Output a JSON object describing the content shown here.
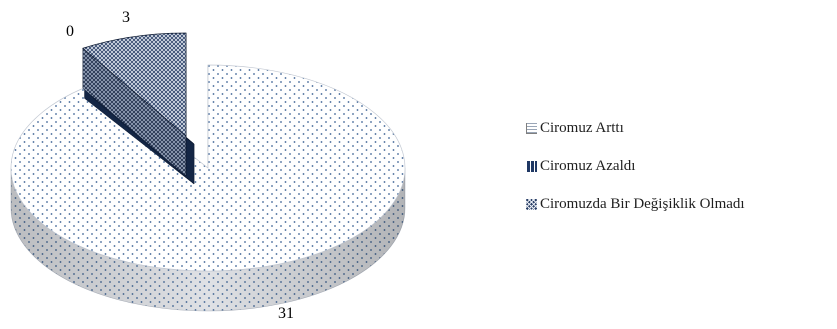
{
  "chart_data": {
    "type": "pie",
    "title": "",
    "categories": [
      "Ciromuz Arttı",
      "Ciromuz Azaldı",
      "Ciromuzda Bir Değişiklik Olmadı"
    ],
    "values": [
      31,
      0,
      3
    ],
    "data_labels": [
      "31",
      "0",
      "3"
    ],
    "legend_position": "right",
    "style": "3d-exploded",
    "colors": [
      "#ffffff",
      "#1f3864",
      "#2f4a7a"
    ]
  },
  "legend": {
    "items": [
      {
        "label": "Ciromuz Arttı"
      },
      {
        "label": "Ciromuz Azaldı"
      },
      {
        "label": "Ciromuzda Bir Değişiklik Olmadı"
      }
    ]
  }
}
